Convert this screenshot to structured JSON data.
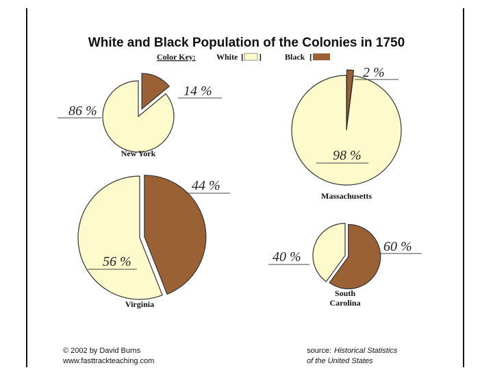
{
  "chart_data": {
    "type": "pie",
    "title": "White and Black Population of the Colonies in 1750",
    "legend": {
      "label": "Color Key:",
      "entries": [
        {
          "name": "White",
          "color": "#fdfacb"
        },
        {
          "name": "Black",
          "color": "#9a6134"
        }
      ]
    },
    "pies": [
      {
        "name": "New York",
        "slices": [
          {
            "series": "White",
            "value": 86,
            "label": "86 %"
          },
          {
            "series": "Black",
            "value": 14,
            "label": "14 %"
          }
        ]
      },
      {
        "name": "Massachusetts",
        "slices": [
          {
            "series": "White",
            "value": 98,
            "label": "98 %"
          },
          {
            "series": "Black",
            "value": 2,
            "label": "2 %"
          }
        ]
      },
      {
        "name": "Virginia",
        "slices": [
          {
            "series": "White",
            "value": 56,
            "label": "56 %"
          },
          {
            "series": "Black",
            "value": 44,
            "label": "44 %"
          }
        ]
      },
      {
        "name": "South Carolina",
        "name_lines": [
          "South",
          "Carolina"
        ],
        "slices": [
          {
            "series": "White",
            "value": 40,
            "label": "40 %"
          },
          {
            "series": "Black",
            "value": 60,
            "label": "60 %"
          }
        ]
      }
    ]
  },
  "footer": {
    "copyright": "© 2002 by David Burns",
    "website": "www.fasttrackteaching.com",
    "source_prefix": "source:",
    "source_title_line1": "Historical Statistics",
    "source_title_line2": "of the United States"
  }
}
